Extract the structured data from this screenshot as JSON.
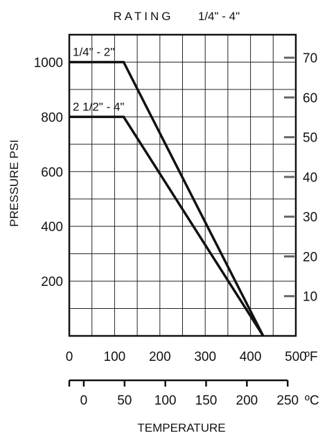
{
  "chart_data": {
    "type": "line",
    "title": "RATING",
    "subtitle": "1/4\" - 4\"",
    "ylabel": "PRESSURE  PSI",
    "xlabel": "TEMPERATURE",
    "y_unit_right": "",
    "x_unit_f": "ºF",
    "x_unit_c": "ºC",
    "xlim_f": [
      0,
      500
    ],
    "ylim_psi": [
      0,
      1100
    ],
    "x_ticks_f": [
      "0",
      "100",
      "200",
      "300",
      "400",
      "500"
    ],
    "y_ticks_psi": [
      "200",
      "400",
      "600",
      "800",
      "1000"
    ],
    "y_ticks_right": [
      "10",
      "20",
      "30",
      "40",
      "50",
      "60",
      "70"
    ],
    "y_ticks_right_values": [
      10,
      20,
      30,
      40,
      50,
      60,
      70
    ],
    "y_right_per_psi": 0.0689,
    "x_ticks_c": [
      "0",
      "50",
      "100",
      "150",
      "200",
      "250"
    ],
    "x_ticks_c_values": [
      0,
      50,
      100,
      150,
      200,
      250
    ],
    "grid": true,
    "series": [
      {
        "name": "1/4\" - 2\"",
        "x": [
          0,
          120,
          428
        ],
        "y": [
          1000,
          1000,
          0
        ]
      },
      {
        "name": "2 1/2\" - 4\"",
        "x": [
          0,
          120,
          428
        ],
        "y": [
          800,
          800,
          0
        ]
      }
    ]
  }
}
